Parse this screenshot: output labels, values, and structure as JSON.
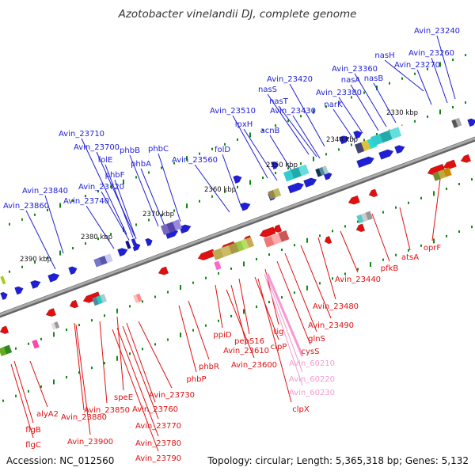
{
  "title": "Azotobacter vinelandii DJ, complete genome",
  "accession": "Accession: NC_012560",
  "summary": "Topology: circular; Length: 5,365,318 bp; Genes: 5,132",
  "colors": {
    "forward": "#1f1fd6",
    "reverse": "#e01010",
    "pink": "#f59ad0",
    "backbone": "#888888",
    "tick": "#118811"
  },
  "ticks": [
    "2390 kbp",
    "2380 kbp",
    "2370 kbp",
    "2360 kbp",
    "2350 kbp",
    "2340 kbp",
    "2330 kbp"
  ],
  "forward_labels": [
    "Avin_23240",
    "Avin_23260",
    "nasH",
    "Avin_23270",
    "Avin_23360",
    "nasA",
    "nasB",
    "Avin_23420",
    "nasS",
    "Avin_23380",
    "nasT",
    "narK",
    "Avin_23510",
    "Avin_23430",
    "lpxH",
    "acnB",
    "Avin_23710",
    "Avin_23700",
    "phbB",
    "phbC",
    "folD",
    "folE",
    "phbA",
    "phbF",
    "Avin_23560",
    "Avin_23720",
    "Avin_23840",
    "Avin_23740",
    "Avin_23860"
  ],
  "reverse_labels": [
    "oprF",
    "atsA",
    "pfkB",
    "Avin_23440",
    "Avin_23480",
    "Avin_23490",
    "glnS",
    "cysS",
    "tig",
    "clpP",
    "pepS16",
    "ppiD",
    "Avin_23610",
    "Avin_23600",
    "phbR",
    "phbP",
    "speE",
    "Avin_23730",
    "Avin_23850",
    "Avin_23760",
    "alyA2",
    "Avin_23880",
    "Avin_23770",
    "flgB",
    "Avin_23900",
    "Avin_23780",
    "flgC",
    "Avin_23790"
  ],
  "pink_labels": [
    "Avin_60210",
    "Avin_60220",
    "Avin_60230",
    "clpX"
  ]
}
